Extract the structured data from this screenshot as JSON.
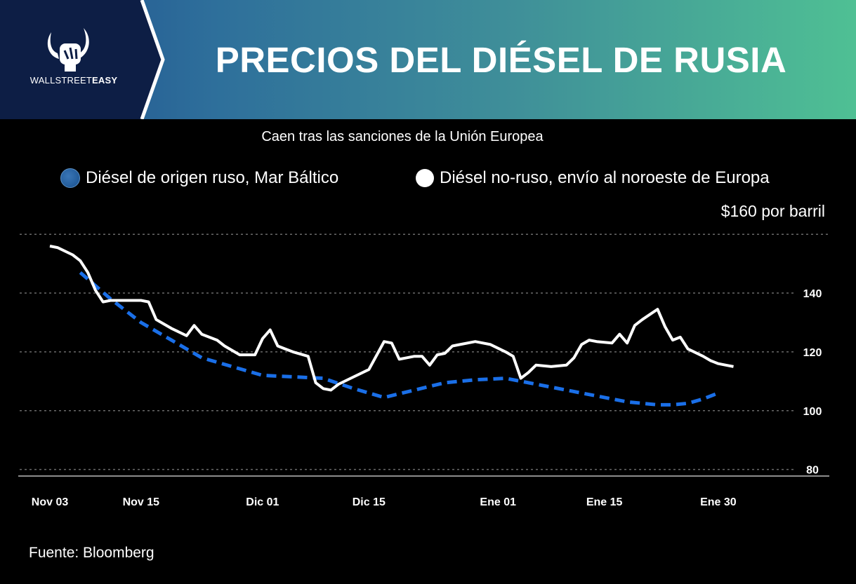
{
  "header": {
    "brand_light": "WALLSTREET",
    "brand_bold": "EASY",
    "title": "PRECIOS DEL DIÉSEL DE RUSIA"
  },
  "colors": {
    "russian_series": "#1a6fe8",
    "non_russian_series": "#ffffff",
    "grid": "#6a6a6a",
    "header_left": "#1f4f8d",
    "header_right": "#4fc094"
  },
  "source": "Fuente: Bloomberg",
  "chart_data": {
    "type": "line",
    "title": "PRECIOS DEL DIÉSEL DE RUSIA",
    "subtitle": "Caen tras las sanciones de la Unión Europea",
    "ylabel": "$160 por barril",
    "ylim": [
      78,
      161
    ],
    "yticks": [
      80,
      100,
      120,
      140,
      160
    ],
    "ytick_labels": [
      "80",
      "100",
      "120",
      "140"
    ],
    "xlim": [
      0,
      93
    ],
    "xticks": [
      {
        "x": 0,
        "label": "Nov 03"
      },
      {
        "x": 12,
        "label": "Nov 15"
      },
      {
        "x": 28,
        "label": "Dic 01"
      },
      {
        "x": 42,
        "label": "Dic 15"
      },
      {
        "x": 59,
        "label": "Ene 01"
      },
      {
        "x": 73,
        "label": "Ene 15"
      },
      {
        "x": 88,
        "label": "Ene 30"
      }
    ],
    "grid": true,
    "legend_position": "top",
    "series": [
      {
        "name": "Diésel de origen ruso, Mar Báltico",
        "style": "dashed",
        "color": "#1a6fe8",
        "x": [
          4,
          8,
          12,
          16,
          20,
          24,
          28,
          32,
          36,
          40,
          44,
          48,
          52,
          56,
          60,
          64,
          68,
          72,
          76,
          80,
          82,
          84,
          86,
          88
        ],
        "y": [
          147,
          138,
          130,
          124,
          118,
          115,
          112,
          111.5,
          111,
          107.5,
          104.5,
          107,
          109.5,
          110.5,
          111,
          109,
          107,
          105,
          103,
          102,
          102,
          102.5,
          104,
          106
        ]
      },
      {
        "name": "Diésel no-ruso, envío al noroeste de Europa",
        "style": "solid",
        "color": "#ffffff",
        "x": [
          0,
          1,
          3,
          4,
          5,
          6,
          7,
          8,
          10,
          12,
          13,
          14,
          15,
          16,
          18,
          19,
          20,
          22,
          23,
          25,
          27,
          28,
          29,
          30,
          31,
          32,
          34,
          35,
          36,
          37,
          38,
          40,
          42,
          44,
          45,
          46,
          47,
          48,
          49,
          50,
          51,
          52,
          53,
          54,
          56,
          58,
          60,
          61,
          62,
          63,
          64,
          66,
          68,
          69,
          70,
          71,
          72,
          74,
          75,
          76,
          77,
          78,
          80,
          81,
          82,
          83,
          84,
          86,
          87,
          88,
          89,
          90
        ],
        "y": [
          156,
          155.5,
          153,
          151,
          147,
          141,
          137,
          137.5,
          137.5,
          137.5,
          137,
          131,
          129.5,
          128,
          125.5,
          129,
          126,
          124,
          122,
          119,
          119,
          124.5,
          127.5,
          122,
          121,
          120,
          118.5,
          109.5,
          107.5,
          107,
          109,
          111.5,
          114,
          123.5,
          123,
          117.5,
          118,
          118.5,
          118.5,
          115.5,
          119,
          119.5,
          122,
          122.5,
          123.5,
          122.5,
          120,
          118.5,
          111,
          113,
          115.5,
          115,
          115.5,
          118,
          122.5,
          124,
          123.5,
          123,
          126,
          123,
          129,
          131,
          134.5,
          128.5,
          124,
          125,
          121,
          118.5,
          117,
          116,
          115.5,
          115
        ]
      }
    ]
  }
}
